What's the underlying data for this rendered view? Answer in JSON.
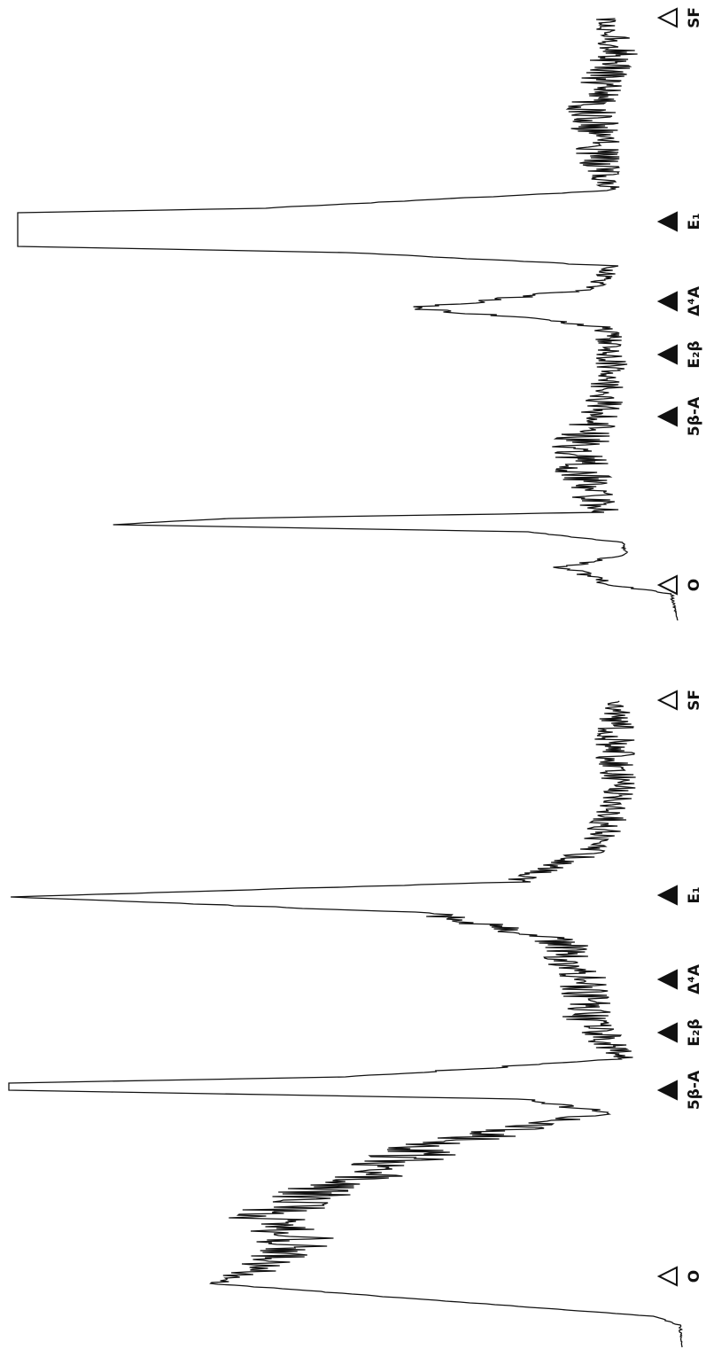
{
  "panels": [
    {
      "markers": [
        {
          "label": "O",
          "filled": false
        },
        {
          "label": "5β-A",
          "filled": true
        },
        {
          "label": "E₂β",
          "filled": true
        },
        {
          "label": "Δ⁴A",
          "filled": true
        },
        {
          "label": "E₁",
          "filled": true
        },
        {
          "label": "SF",
          "filled": false
        }
      ]
    },
    {
      "markers": [
        {
          "label": "O",
          "filled": false
        },
        {
          "label": "5β-A",
          "filled": true
        },
        {
          "label": "E₂β",
          "filled": true
        },
        {
          "label": "Δ⁴A",
          "filled": true
        },
        {
          "label": "E₁",
          "filled": true
        },
        {
          "label": "SF",
          "filled": false
        }
      ]
    }
  ]
}
